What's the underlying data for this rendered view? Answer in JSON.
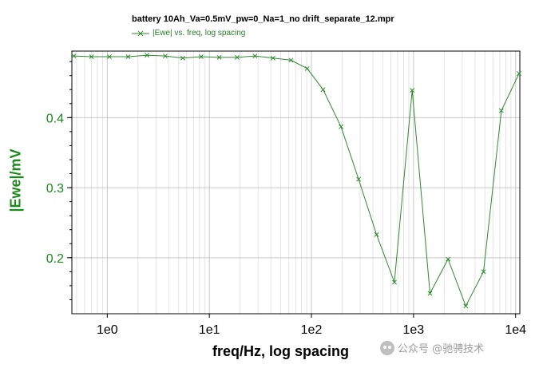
{
  "chart_data": {
    "type": "line",
    "title": "battery 10Ah_Va=0.5mV_pw=0_Na=1_no drift_separate_12.mpr",
    "xlabel": "freq/Hz, log spacing",
    "ylabel": "|Ewe|/mV",
    "x_scale": "log",
    "xlim": [
      0.45,
      11000
    ],
    "ylim": [
      0.12,
      0.495
    ],
    "x_ticks": [
      1,
      10,
      100,
      1000,
      10000
    ],
    "x_tick_labels": [
      "1e0",
      "1e1",
      "1e2",
      "1e3",
      "1e4"
    ],
    "y_ticks": [
      0.2,
      0.3,
      0.4
    ],
    "y_tick_labels": [
      "0.2",
      "0.3",
      "0.4"
    ],
    "grid": true,
    "legend_position": "top-left",
    "colors": {
      "series": "#2e8b2e",
      "axis_text": "#1a8a1a",
      "grid": "#c8c8c8"
    },
    "series": [
      {
        "name": "|Ewe| vs. freq, log spacing",
        "marker": "x",
        "x": [
          0.47,
          0.7,
          1.05,
          1.6,
          2.45,
          3.7,
          5.5,
          8.3,
          12.5,
          18.7,
          28,
          42,
          63,
          91,
          130,
          195,
          290,
          435,
          650,
          970,
          1450,
          2180,
          3250,
          4850,
          7250,
          10800
        ],
        "y": [
          0.488,
          0.487,
          0.487,
          0.487,
          0.489,
          0.488,
          0.485,
          0.487,
          0.486,
          0.486,
          0.488,
          0.485,
          0.482,
          0.47,
          0.44,
          0.387,
          0.312,
          0.233,
          0.165,
          0.439,
          0.149,
          0.198,
          0.131,
          0.18,
          0.41,
          0.463
        ]
      }
    ]
  },
  "watermark": {
    "text": "公众号 @驰骋技术",
    "icon": "wechat-icon"
  }
}
